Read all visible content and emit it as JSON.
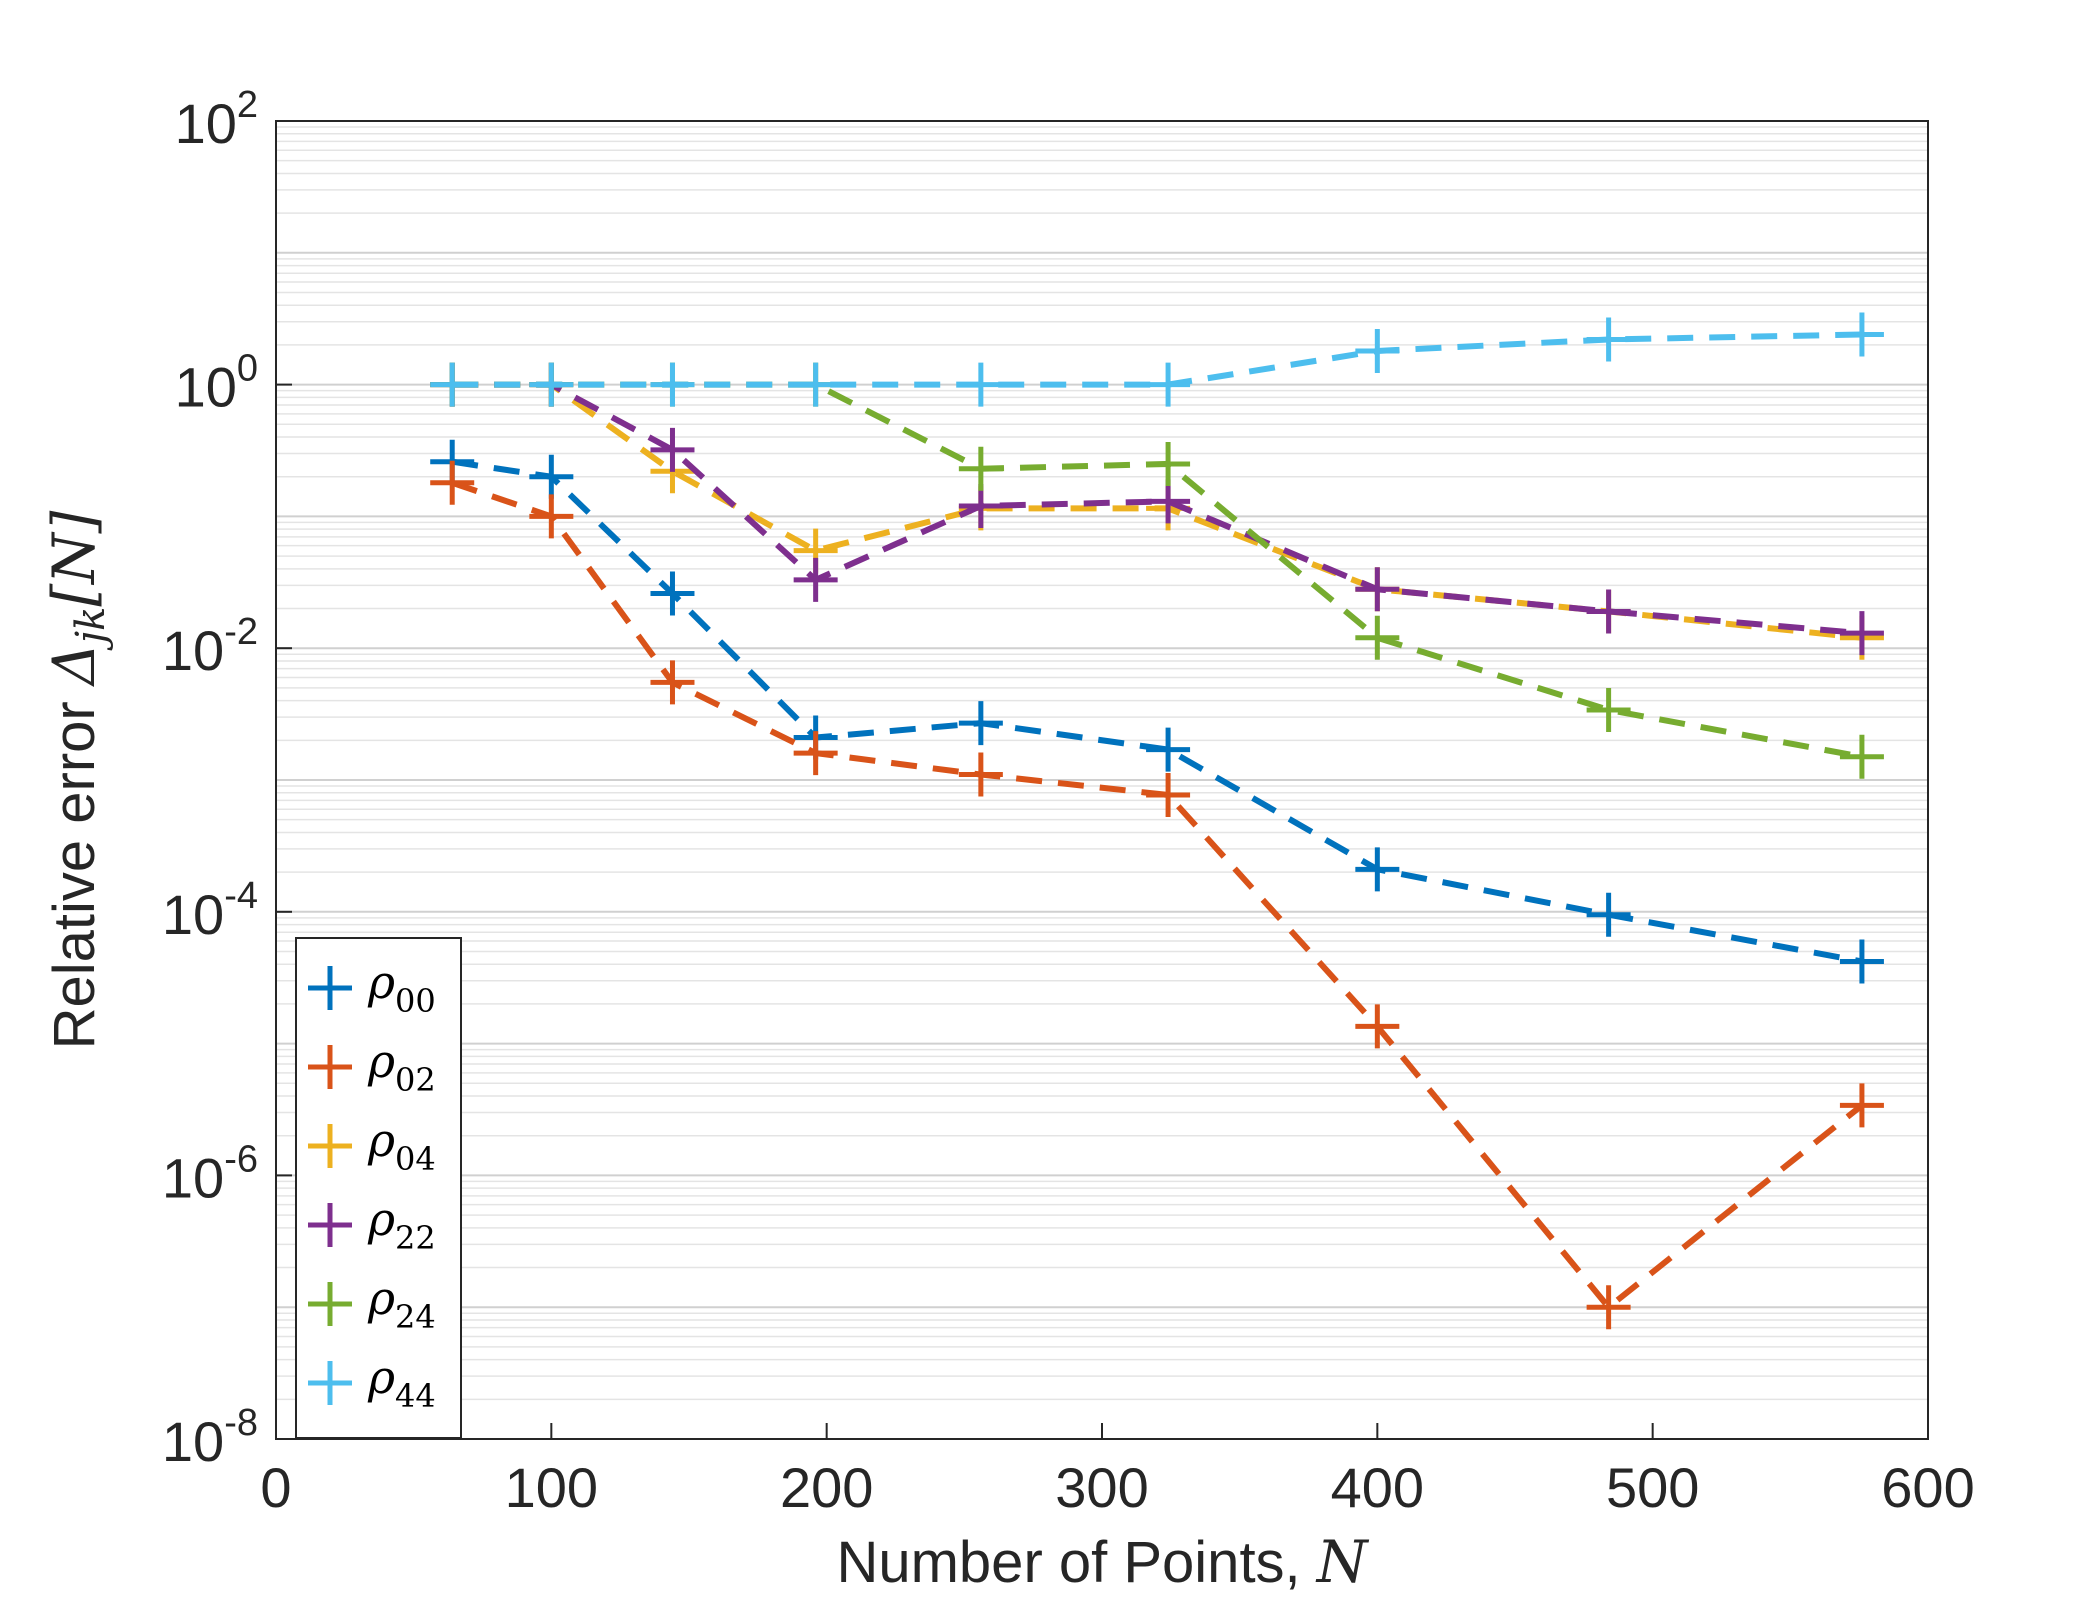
{
  "chart_data": {
    "type": "line",
    "xlabel": "Number of Points, N",
    "xlabel_text": "Number of Points, ",
    "xlabel_var": "N",
    "ylabel": "Relative error Δjk[N]",
    "ylabel_text": "Relative error ",
    "ylabel_symbol": "Δ",
    "ylabel_sub": "jk",
    "ylabel_bracket": "[N]",
    "xlim": [
      0,
      600
    ],
    "ylim": [
      1e-08,
      100
    ],
    "yscale": "log",
    "grid": true,
    "line_style": "dashed",
    "marker": "+",
    "legend_position": "lower-left",
    "x_ticks": [
      "0",
      "100",
      "200",
      "300",
      "400",
      "500",
      "600"
    ],
    "y_ticks": [
      {
        "base": "10",
        "exp": "-8",
        "value": 1e-08
      },
      {
        "base": "10",
        "exp": "-6",
        "value": 1e-06
      },
      {
        "base": "10",
        "exp": "-4",
        "value": 0.0001
      },
      {
        "base": "10",
        "exp": "-2",
        "value": 0.01
      },
      {
        "base": "10",
        "exp": "0",
        "value": 1
      },
      {
        "base": "10",
        "exp": "2",
        "value": 100
      }
    ],
    "x": [
      64,
      100,
      144,
      196,
      256,
      324,
      400,
      484,
      576
    ],
    "series": [
      {
        "name": "ρ00",
        "symbol": "ρ",
        "sub": "00",
        "color": "#0072BD",
        "values": [
          0.26,
          0.2,
          0.026,
          0.0021,
          0.0027,
          0.0017,
          0.00021,
          9.5e-05,
          4.2e-05
        ]
      },
      {
        "name": "ρ02",
        "symbol": "ρ",
        "sub": "02",
        "color": "#D95319",
        "values": [
          0.18,
          0.1,
          0.0055,
          0.0016,
          0.0011,
          0.00077,
          1.35e-05,
          1e-07,
          3.4e-06
        ]
      },
      {
        "name": "ρ04",
        "symbol": "ρ",
        "sub": "04",
        "color": "#EDB120",
        "values": [
          1.0,
          1.0,
          0.22,
          0.055,
          0.115,
          0.115,
          0.028,
          0.019,
          0.012
        ]
      },
      {
        "name": "ρ22",
        "symbol": "ρ",
        "sub": "22",
        "color": "#7E2F8E",
        "values": [
          1.0,
          1.0,
          0.32,
          0.033,
          0.12,
          0.13,
          0.028,
          0.019,
          0.013
        ]
      },
      {
        "name": "ρ24",
        "symbol": "ρ",
        "sub": "24",
        "color": "#77AC30",
        "values": [
          1.0,
          1.0,
          1.0,
          1.0,
          0.23,
          0.25,
          0.012,
          0.0034,
          0.0015
        ]
      },
      {
        "name": "ρ44",
        "symbol": "ρ",
        "sub": "44",
        "color": "#4DBEEE",
        "values": [
          1.0,
          1.0,
          1.0,
          1.0,
          1.0,
          1.0,
          1.8,
          2.2,
          2.4
        ]
      }
    ]
  }
}
